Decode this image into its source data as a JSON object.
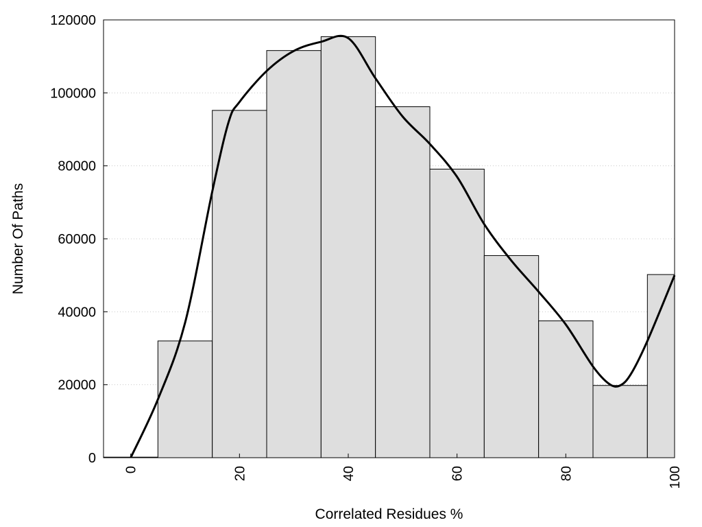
{
  "chart_data": {
    "type": "bar",
    "title": "",
    "xlabel": "Correlated Residues %",
    "ylabel": "Number Of Paths",
    "xlim": [
      -5,
      100
    ],
    "ylim": [
      0,
      120000
    ],
    "grid": true,
    "legend": "none",
    "bar_width": 10,
    "x_ticks": [
      0,
      20,
      40,
      60,
      80,
      100
    ],
    "y_ticks": [
      0,
      20000,
      40000,
      60000,
      80000,
      100000,
      120000
    ],
    "x": [
      0,
      10,
      20,
      30,
      40,
      50,
      60,
      70,
      80,
      90,
      100
    ],
    "values": [
      150,
      32000,
      95200,
      111600,
      115400,
      96200,
      79100,
      55400,
      37500,
      19800,
      50200
    ],
    "curve": {
      "x": [
        0,
        5,
        10,
        15,
        18,
        20,
        25,
        30,
        35,
        40,
        45,
        50,
        55,
        60,
        65,
        70,
        75,
        80,
        85,
        88,
        90,
        92,
        95,
        100
      ],
      "y": [
        0,
        16000,
        37000,
        73000,
        92000,
        97500,
        106000,
        111500,
        114000,
        115000,
        104000,
        93500,
        86000,
        77000,
        64000,
        54000,
        45500,
        36500,
        25000,
        20200,
        19800,
        23000,
        32000,
        50000
      ]
    },
    "colors": {
      "bar_fill": "#dedede",
      "bar_stroke": "#000000",
      "curve": "#000000",
      "grid": "#c8c8c8"
    }
  }
}
